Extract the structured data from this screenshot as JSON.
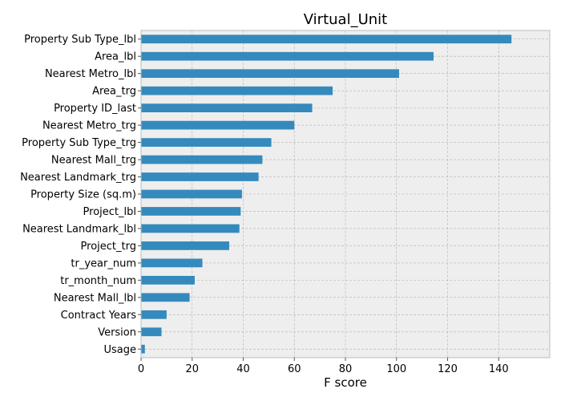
{
  "chart_data": {
    "type": "bar",
    "orientation": "horizontal",
    "title": "Virtual_Unit",
    "xlabel": "F score",
    "ylabel": "",
    "xlim": [
      0,
      160
    ],
    "x_ticks": [
      0,
      20,
      40,
      60,
      80,
      100,
      120,
      140
    ],
    "grid": true,
    "categories": [
      "Property Sub Type_lbl",
      "Area_lbl",
      "Nearest Metro_lbl",
      "Area_trg",
      "Property ID_last",
      "Nearest Metro_trg",
      "Property Sub Type_trg",
      "Nearest Mall_trg",
      "Nearest Landmark_trg",
      "Property Size (sq.m)",
      "Project_lbl",
      "Nearest Landmark_lbl",
      "Project_trg",
      "tr_year_num",
      "tr_month_num",
      "Nearest Mall_lbl",
      "Contract Years",
      "Version",
      "Usage"
    ],
    "values": [
      145,
      114.5,
      101,
      75,
      67,
      60,
      51,
      47.5,
      46,
      39.5,
      39,
      38.5,
      34.5,
      24,
      21,
      19,
      10,
      8,
      1.5
    ],
    "colors": {
      "bar": "#348ABD",
      "plot_background": "#EEEEEE",
      "grid": "#B2B2B2",
      "axes_edge": "#BCBCBC"
    }
  }
}
